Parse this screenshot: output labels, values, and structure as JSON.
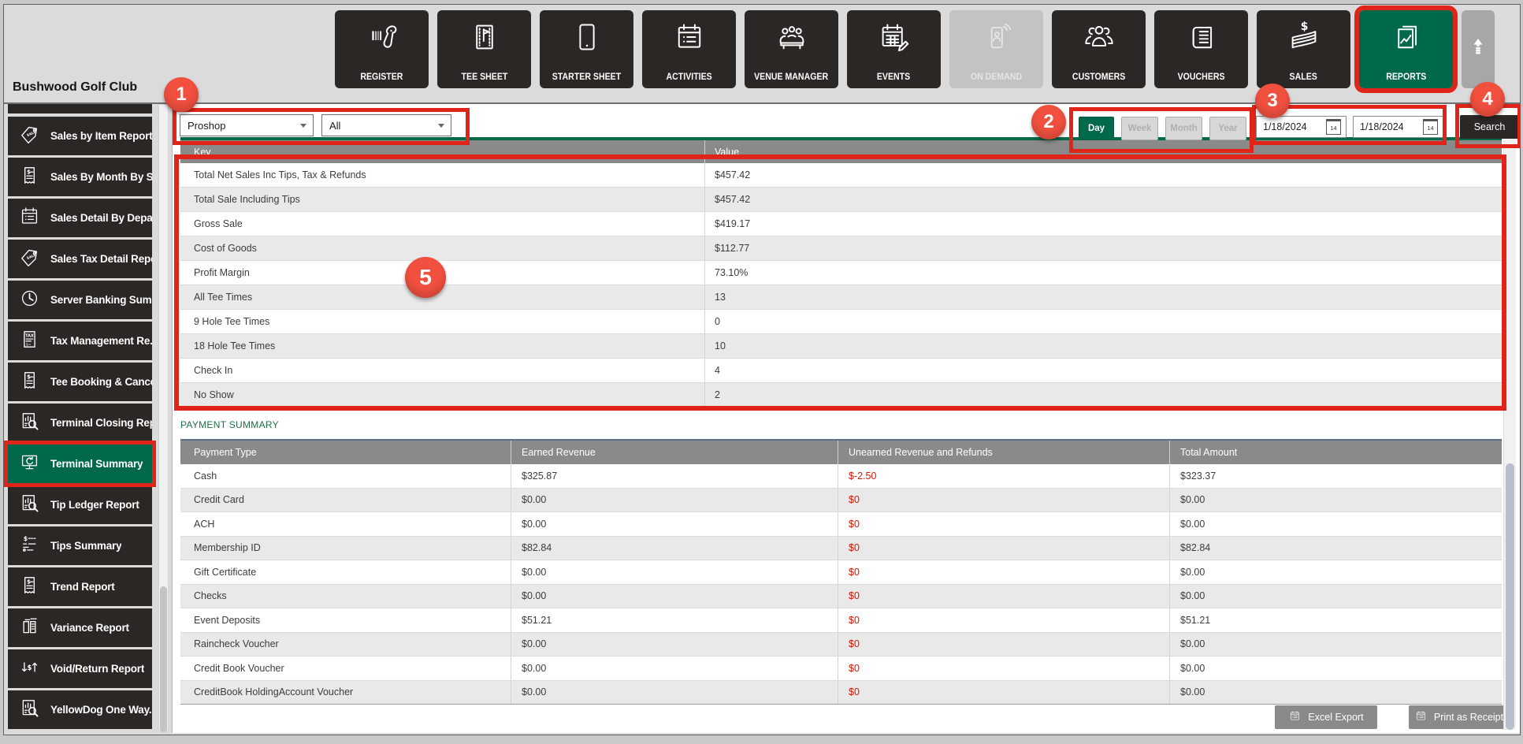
{
  "sidebar": {
    "title": "Bushwood Golf Club",
    "items": [
      {
        "label": "Sales by Item Report",
        "icon": "sale-tag-icon"
      },
      {
        "label": "Sales By Month By S...",
        "icon": "receipt-dollar-icon"
      },
      {
        "label": "Sales Detail By Depar...",
        "icon": "calendar-list-icon"
      },
      {
        "label": "Sales Tax Detail Report",
        "icon": "sale-tag-icon"
      },
      {
        "label": "Server Banking Sum...",
        "icon": "clock-icon"
      },
      {
        "label": "Tax Management Re...",
        "icon": "tax-document-icon"
      },
      {
        "label": "Tee Booking & Cance...",
        "icon": "receipt-dollar-icon"
      },
      {
        "label": "Terminal Closing Rep...",
        "icon": "chart-magnifier-icon"
      },
      {
        "label": "Terminal Summary",
        "icon": "monitor-refresh-icon",
        "selected": true
      },
      {
        "label": "Tip Ledger Report",
        "icon": "chart-magnifier-icon"
      },
      {
        "label": "Tips Summary",
        "icon": "dollar-list-icon"
      },
      {
        "label": "Trend Report",
        "icon": "receipt-dollar-icon"
      },
      {
        "label": "Variance Report",
        "icon": "document-pair-icon"
      },
      {
        "label": "Void/Return Report",
        "icon": "void-return-icon"
      },
      {
        "label": "YellowDog One Way...",
        "icon": "chart-magnifier-icon"
      }
    ]
  },
  "toolbar": {
    "buttons": [
      {
        "label": "REGISTER",
        "icon": "barcode-scanner-icon",
        "state": "normal"
      },
      {
        "label": "TEE SHEET",
        "icon": "flag-sheet-icon",
        "state": "normal"
      },
      {
        "label": "STARTER SHEET",
        "icon": "tablet-icon",
        "state": "normal"
      },
      {
        "label": "ACTIVITIES",
        "icon": "calendar-list-icon",
        "state": "normal"
      },
      {
        "label": "VENUE MANAGER",
        "icon": "people-table-icon",
        "state": "normal"
      },
      {
        "label": "EVENTS",
        "icon": "calendar-pencil-icon",
        "state": "normal"
      },
      {
        "label": "ON DEMAND",
        "icon": "phone-signal-icon",
        "state": "disabled"
      },
      {
        "label": "CUSTOMERS",
        "icon": "people-group-icon",
        "state": "normal"
      },
      {
        "label": "VOUCHERS",
        "icon": "voucher-icon",
        "state": "normal"
      },
      {
        "label": "SALES",
        "icon": "money-stack-icon",
        "state": "normal"
      },
      {
        "label": "REPORTS",
        "icon": "report-chart-icon",
        "state": "selected"
      }
    ],
    "scroll_up_icon": "up-arrow-icon"
  },
  "filters": {
    "location_value": "Proshop",
    "category_value": "All",
    "periods": [
      {
        "label": "Day",
        "selected": true
      },
      {
        "label": "Week",
        "selected": false
      },
      {
        "label": "Month",
        "selected": false
      },
      {
        "label": "Year",
        "selected": false
      }
    ],
    "date_from": "1/18/2024",
    "date_to": "1/18/2024",
    "calendar_day": "14",
    "search_label": "Search"
  },
  "summary_table": {
    "columns": [
      "Key",
      "Value"
    ],
    "rows": [
      [
        "Total Net Sales Inc Tips, Tax & Refunds",
        "$457.42"
      ],
      [
        "Total Sale Including Tips",
        "$457.42"
      ],
      [
        "Gross Sale",
        "$419.17"
      ],
      [
        "Cost of Goods",
        "$112.77"
      ],
      [
        "Profit Margin",
        "73.10%"
      ],
      [
        "All Tee Times",
        "13"
      ],
      [
        "9 Hole Tee Times",
        "0"
      ],
      [
        "18 Hole Tee Times",
        "10"
      ],
      [
        "Check In",
        "4"
      ],
      [
        "No Show",
        "2"
      ]
    ]
  },
  "payment_summary": {
    "heading": "PAYMENT SUMMARY",
    "columns": [
      "Payment Type",
      "Earned Revenue",
      "Unearned Revenue and Refunds",
      "Total Amount"
    ],
    "rows": [
      [
        "Cash",
        "$325.87",
        "$-2.50",
        "$323.37"
      ],
      [
        "Credit Card",
        "$0.00",
        "$0",
        "$0.00"
      ],
      [
        "ACH",
        "$0.00",
        "$0",
        "$0.00"
      ],
      [
        "Membership ID",
        "$82.84",
        "$0",
        "$82.84"
      ],
      [
        "Gift Certificate",
        "$0.00",
        "$0",
        "$0.00"
      ],
      [
        "Checks",
        "$0.00",
        "$0",
        "$0.00"
      ],
      [
        "Event Deposits",
        "$51.21",
        "$0",
        "$51.21"
      ],
      [
        "Raincheck Voucher",
        "$0.00",
        "$0",
        "$0.00"
      ],
      [
        "Credit Book Voucher",
        "$0.00",
        "$0",
        "$0.00"
      ],
      [
        "CreditBook HoldingAccount Voucher",
        "$0.00",
        "$0",
        "$0.00"
      ]
    ]
  },
  "footer": {
    "excel_export_label": "Excel Export",
    "print_receipt_label": "Print as Receipt"
  },
  "annotations": {
    "n1": "1",
    "n2": "2",
    "n3": "3",
    "n4": "4",
    "n5": "5"
  },
  "colors": {
    "brand_green": "#00684B",
    "annotation_red": "#E0241A",
    "negative_red": "#DC1400",
    "table_header_gray": "#8A8A8A",
    "payment_summary_green": "#1E7145",
    "dark_button": "#2B2724"
  }
}
